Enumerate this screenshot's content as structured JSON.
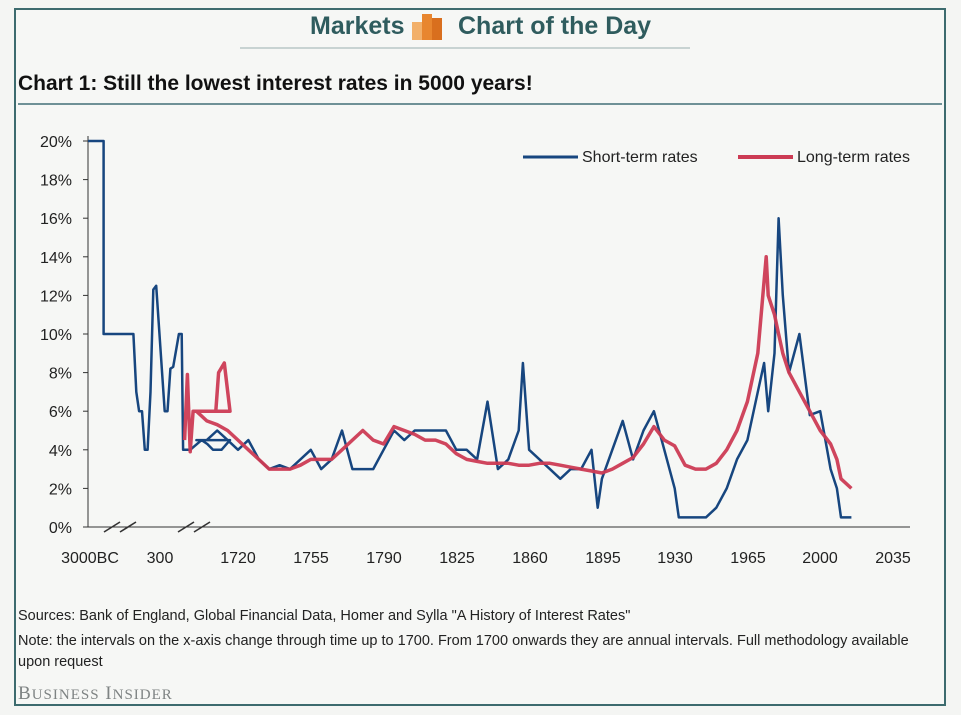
{
  "banner": {
    "left": "Markets",
    "right": "Chart of the Day"
  },
  "footer": {
    "sources": "Sources: Bank of England, Global Financial Data, Homer and Sylla \"A History of Interest Rates\"",
    "note_line1": "Note: the intervals on the x-axis change through time up to 1700. From 1700 onwards they are annual intervals. Full methodology available",
    "note_line2": "upon request",
    "brand": "Business Insider"
  },
  "colors": {
    "short": "#17467f",
    "long": "#cc3b54",
    "accent": "#2f5c5e",
    "logo_orange": "#e8862f"
  },
  "chart_data": {
    "type": "line",
    "title": "Chart 1:  Still the lowest interest rates in 5000 years!",
    "xlabel": "",
    "ylabel": "",
    "ylim": [
      0,
      20
    ],
    "yticks": [
      "0%",
      "2%",
      "4%",
      "6%",
      "8%",
      "10%",
      "12%",
      "14%",
      "16%",
      "18%",
      "20%"
    ],
    "xticks": [
      "3000BC",
      "300",
      "1720",
      "1755",
      "1790",
      "1825",
      "1860",
      "1895",
      "1930",
      "1965",
      "2000",
      "2035"
    ],
    "x_domain": [
      1700,
      2035
    ],
    "axis_breaks": 2,
    "legend": "top-right",
    "grid": false,
    "pre1700_points": {
      "short": [
        [
          0,
          20
        ],
        [
          0.11,
          20
        ],
        [
          0.11,
          10
        ],
        [
          0.32,
          10
        ],
        [
          0.34,
          7
        ],
        [
          0.36,
          6
        ],
        [
          0.38,
          6
        ],
        [
          0.4,
          4
        ],
        [
          0.42,
          4
        ],
        [
          0.44,
          7
        ],
        [
          0.46,
          12.3
        ],
        [
          0.48,
          12.5
        ],
        [
          0.54,
          6
        ],
        [
          0.56,
          6
        ],
        [
          0.58,
          8.2
        ],
        [
          0.6,
          8.3
        ],
        [
          0.64,
          10
        ],
        [
          0.66,
          10
        ],
        [
          0.67,
          4
        ],
        [
          0.72,
          4
        ],
        [
          0.8,
          4.5
        ],
        [
          0.84,
          4.3
        ],
        [
          0.88,
          4
        ],
        [
          0.94,
          4
        ],
        [
          1,
          4.5
        ]
      ],
      "long": [
        [
          0.68,
          4.5
        ],
        [
          0.7,
          7.9
        ],
        [
          0.72,
          3.9
        ],
        [
          0.74,
          6
        ],
        [
          0.78,
          6
        ],
        [
          0.82,
          6
        ],
        [
          0.86,
          6
        ],
        [
          0.9,
          6
        ],
        [
          0.92,
          8
        ],
        [
          0.96,
          8.5
        ],
        [
          1,
          6
        ]
      ]
    },
    "series": [
      {
        "name": "Short-term rates",
        "x": [
          1700,
          1705,
          1710,
          1715,
          1720,
          1725,
          1730,
          1735,
          1740,
          1745,
          1750,
          1755,
          1760,
          1765,
          1770,
          1775,
          1780,
          1785,
          1790,
          1795,
          1800,
          1805,
          1810,
          1815,
          1820,
          1825,
          1830,
          1835,
          1840,
          1845,
          1850,
          1855,
          1857,
          1860,
          1865,
          1870,
          1875,
          1880,
          1885,
          1890,
          1893,
          1895,
          1900,
          1905,
          1910,
          1915,
          1920,
          1925,
          1930,
          1932,
          1935,
          1940,
          1945,
          1950,
          1955,
          1960,
          1965,
          1970,
          1973,
          1975,
          1978,
          1980,
          1982,
          1985,
          1990,
          1995,
          2000,
          2005,
          2008,
          2010,
          2015
        ],
        "values": [
          4.5,
          4.5,
          5,
          4.5,
          4,
          4.5,
          3.5,
          3,
          3.2,
          3,
          3.5,
          4,
          3,
          3.5,
          5,
          3,
          3,
          3,
          4,
          5,
          4.5,
          5,
          5,
          5,
          5,
          4,
          4,
          3.5,
          6.5,
          3,
          3.5,
          5,
          8.5,
          4,
          3.5,
          3,
          2.5,
          3,
          3,
          4,
          1,
          2.5,
          4,
          5.5,
          3.5,
          5,
          6,
          4,
          2,
          0.5,
          0.5,
          0.5,
          0.5,
          1,
          2,
          3.5,
          4.5,
          7,
          8.5,
          6,
          9,
          16,
          12,
          8,
          10,
          5.8,
          6,
          3,
          2,
          0.5,
          0.5
        ]
      },
      {
        "name": "Long-term rates",
        "x": [
          1700,
          1705,
          1710,
          1715,
          1720,
          1725,
          1730,
          1735,
          1740,
          1745,
          1750,
          1755,
          1760,
          1765,
          1770,
          1775,
          1780,
          1785,
          1790,
          1795,
          1800,
          1805,
          1810,
          1815,
          1820,
          1825,
          1830,
          1835,
          1840,
          1845,
          1850,
          1855,
          1860,
          1865,
          1870,
          1875,
          1880,
          1885,
          1890,
          1895,
          1900,
          1905,
          1910,
          1915,
          1920,
          1925,
          1930,
          1935,
          1940,
          1945,
          1950,
          1955,
          1960,
          1965,
          1970,
          1974,
          1975,
          1978,
          1980,
          1982,
          1985,
          1990,
          1995,
          2000,
          2005,
          2008,
          2010,
          2015
        ],
        "values": [
          6,
          5.5,
          5.3,
          5,
          4.5,
          4,
          3.5,
          3,
          3,
          3,
          3.2,
          3.5,
          3.5,
          3.5,
          4,
          4.5,
          5,
          4.5,
          4.3,
          5.2,
          5,
          4.8,
          4.5,
          4.5,
          4.3,
          3.8,
          3.5,
          3.4,
          3.3,
          3.3,
          3.3,
          3.2,
          3.2,
          3.3,
          3.3,
          3.2,
          3.1,
          3,
          2.9,
          2.8,
          3,
          3.3,
          3.6,
          4.3,
          5.2,
          4.5,
          4.2,
          3.2,
          3,
          3,
          3.3,
          4,
          5,
          6.5,
          9,
          14,
          12,
          11,
          10,
          9,
          8,
          7,
          6,
          5,
          4.3,
          3.5,
          2.5,
          2
        ]
      }
    ]
  }
}
